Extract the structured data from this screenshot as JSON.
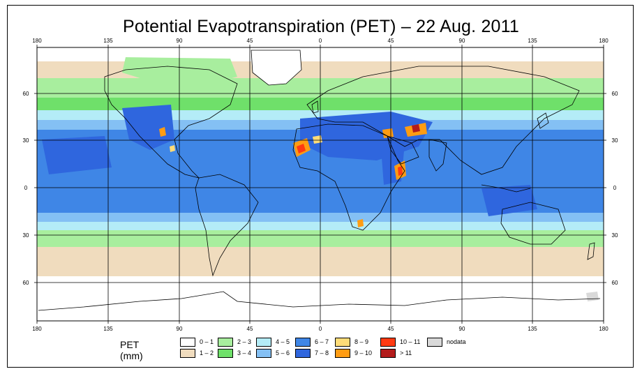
{
  "title": "Potential Evapotranspiration (PET) – 22 Aug. 2011",
  "longitude_ticks": [
    "180",
    "135",
    "90",
    "45",
    "0",
    "45",
    "90",
    "135",
    "180"
  ],
  "latitude_ticks": [
    "60",
    "30",
    "0",
    "30",
    "60"
  ],
  "legend": {
    "title": "PET (mm)",
    "items": [
      {
        "label": "0 – 1",
        "color": "#ffffff"
      },
      {
        "label": "1 – 2",
        "color": "#f0dcbe"
      },
      {
        "label": "2 – 3",
        "color": "#a8ee9e"
      },
      {
        "label": "3 – 4",
        "color": "#6fe06a"
      },
      {
        "label": "4 – 5",
        "color": "#b4ecf7"
      },
      {
        "label": "5 – 6",
        "color": "#84c0f4"
      },
      {
        "label": "6 – 7",
        "color": "#3f86e6"
      },
      {
        "label": "7 – 8",
        "color": "#2f66de"
      },
      {
        "label": "8 – 9",
        "color": "#ffdc78"
      },
      {
        "label": "9 – 10",
        "color": "#ff9c12"
      },
      {
        "label": "10 – 11",
        "color": "#ff3a12"
      },
      {
        "label": "> 11",
        "color": "#b31c1c"
      },
      {
        "label": "nodata",
        "color": "#d9d9d9"
      }
    ]
  }
}
